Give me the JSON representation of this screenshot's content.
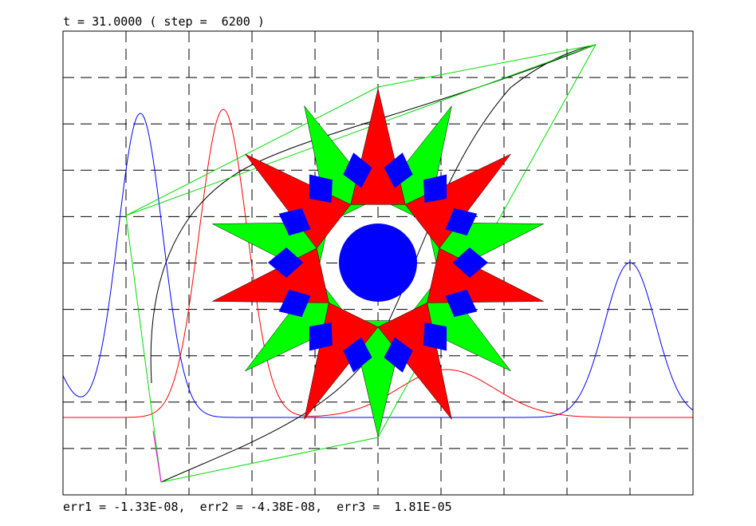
{
  "header": {
    "status": "t = 31.0000 ( step =  6200 )"
  },
  "footer": {
    "errors": "err1 = -1.33E-08,  err2 = -4.38E-08,  err3 =  1.81E-05"
  }
}
